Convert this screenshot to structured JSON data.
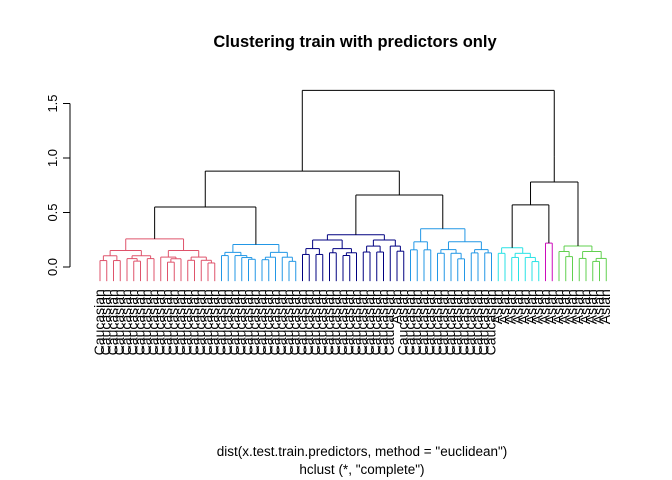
{
  "chart_data": {
    "type": "dendrogram",
    "title": "Clustering train with predictors only",
    "xlabel": "dist(x.test.train.predictors, method = \"euclidean\")",
    "sublabel": "hclust (*, \"complete\")",
    "ylabel": "",
    "ylim": [
      0,
      1.7
    ],
    "yticks": [
      "0.0",
      "0.5",
      "1.0",
      "1.5"
    ],
    "ytick_values": [
      0,
      0.5,
      1.0,
      1.5
    ],
    "cluster_colors": [
      "#df536b",
      "#2297e6",
      "#000080",
      "#61d04f",
      "#28e2e5",
      "#cd0bbc"
    ],
    "merge_heights": {
      "root": 1.62,
      "left_major": 0.88,
      "right_major": 1.01,
      "left_a": 0.55,
      "left_b": 0.66,
      "right_a": 0.57,
      "right_b": 0.78
    },
    "leaves": [
      {
        "label": "Caucasian",
        "cluster": 0
      },
      {
        "label": "Caucasian",
        "cluster": 0
      },
      {
        "label": "Caucasian",
        "cluster": 0
      },
      {
        "label": "Caucasian",
        "cluster": 0
      },
      {
        "label": "Caucasian",
        "cluster": 0
      },
      {
        "label": "Caucasian",
        "cluster": 0
      },
      {
        "label": "Caucasian",
        "cluster": 0
      },
      {
        "label": "Caucasian",
        "cluster": 0
      },
      {
        "label": "Caucasian",
        "cluster": 0
      },
      {
        "label": "Caucasian",
        "cluster": 0
      },
      {
        "label": "Caucasian",
        "cluster": 0
      },
      {
        "label": "Caucasian",
        "cluster": 0
      },
      {
        "label": "Caucasian",
        "cluster": 0
      },
      {
        "label": "Caucasian",
        "cluster": 0
      },
      {
        "label": "Caucasian",
        "cluster": 0
      },
      {
        "label": "Caucasian",
        "cluster": 0
      },
      {
        "label": "Caucasian",
        "cluster": 0
      },
      {
        "label": "Caucasian",
        "cluster": 0
      },
      {
        "label": "Caucasian",
        "cluster": 1
      },
      {
        "label": "Caucasian",
        "cluster": 1
      },
      {
        "label": "Caucasian",
        "cluster": 1
      },
      {
        "label": "Caucasian",
        "cluster": 1
      },
      {
        "label": "Caucasian",
        "cluster": 1
      },
      {
        "label": "Caucasian",
        "cluster": 1
      },
      {
        "label": "Caucasian",
        "cluster": 1
      },
      {
        "label": "Caucasian",
        "cluster": 1
      },
      {
        "label": "Caucasian",
        "cluster": 1
      },
      {
        "label": "Caucasian",
        "cluster": 1
      },
      {
        "label": "Caucasian",
        "cluster": 1
      },
      {
        "label": "Caucasian",
        "cluster": 1
      },
      {
        "label": "Caucasian",
        "cluster": 2
      },
      {
        "label": "Caucasian",
        "cluster": 2
      },
      {
        "label": "Caucasian",
        "cluster": 2
      },
      {
        "label": "Caucasian",
        "cluster": 2
      },
      {
        "label": "Caucasian",
        "cluster": 2
      },
      {
        "label": "Caucasian",
        "cluster": 2
      },
      {
        "label": "Caucasian",
        "cluster": 2
      },
      {
        "label": "Caucasian",
        "cluster": 2
      },
      {
        "label": "Caucasian",
        "cluster": 2
      },
      {
        "label": "Caucasian",
        "cluster": 2
      },
      {
        "label": "Caucasian",
        "cluster": 2
      },
      {
        "label": "Caucasian",
        "cluster": 2
      },
      {
        "label": "Caucasian",
        "cluster": 2
      },
      {
        "label": "Caucasian",
        "cluster": 2
      },
      {
        "label": "Asian",
        "cluster": 2
      },
      {
        "label": "Caucasian",
        "cluster": 2
      },
      {
        "label": "Caucasian",
        "cluster": 1
      },
      {
        "label": "Caucasian",
        "cluster": 1
      },
      {
        "label": "Caucasian",
        "cluster": 1
      },
      {
        "label": "Caucasian",
        "cluster": 1
      },
      {
        "label": "Caucasian",
        "cluster": 1
      },
      {
        "label": "Caucasian",
        "cluster": 1
      },
      {
        "label": "Caucasian",
        "cluster": 1
      },
      {
        "label": "Caucasian",
        "cluster": 1
      },
      {
        "label": "Caucasian",
        "cluster": 1
      },
      {
        "label": "Caucasian",
        "cluster": 1
      },
      {
        "label": "Caucasian",
        "cluster": 1
      },
      {
        "label": "Caucasian",
        "cluster": 1
      },
      {
        "label": "Caucasian",
        "cluster": 1
      },
      {
        "label": "Asian",
        "cluster": 4
      },
      {
        "label": "Asian",
        "cluster": 4
      },
      {
        "label": "Asian",
        "cluster": 4
      },
      {
        "label": "Asian",
        "cluster": 4
      },
      {
        "label": "Asian",
        "cluster": 4
      },
      {
        "label": "Asian",
        "cluster": 4
      },
      {
        "label": "Asian",
        "cluster": 4
      },
      {
        "label": "Asian",
        "cluster": 5
      },
      {
        "label": "Asian",
        "cluster": 5
      },
      {
        "label": "Asian",
        "cluster": 3
      },
      {
        "label": "Asian",
        "cluster": 3
      },
      {
        "label": "Asian",
        "cluster": 3
      },
      {
        "label": "Asian",
        "cluster": 3
      },
      {
        "label": "Asian",
        "cluster": 3
      },
      {
        "label": "Asian",
        "cluster": 3
      },
      {
        "label": "Asian",
        "cluster": 3
      },
      {
        "label": "Asian",
        "cluster": 3
      }
    ]
  }
}
